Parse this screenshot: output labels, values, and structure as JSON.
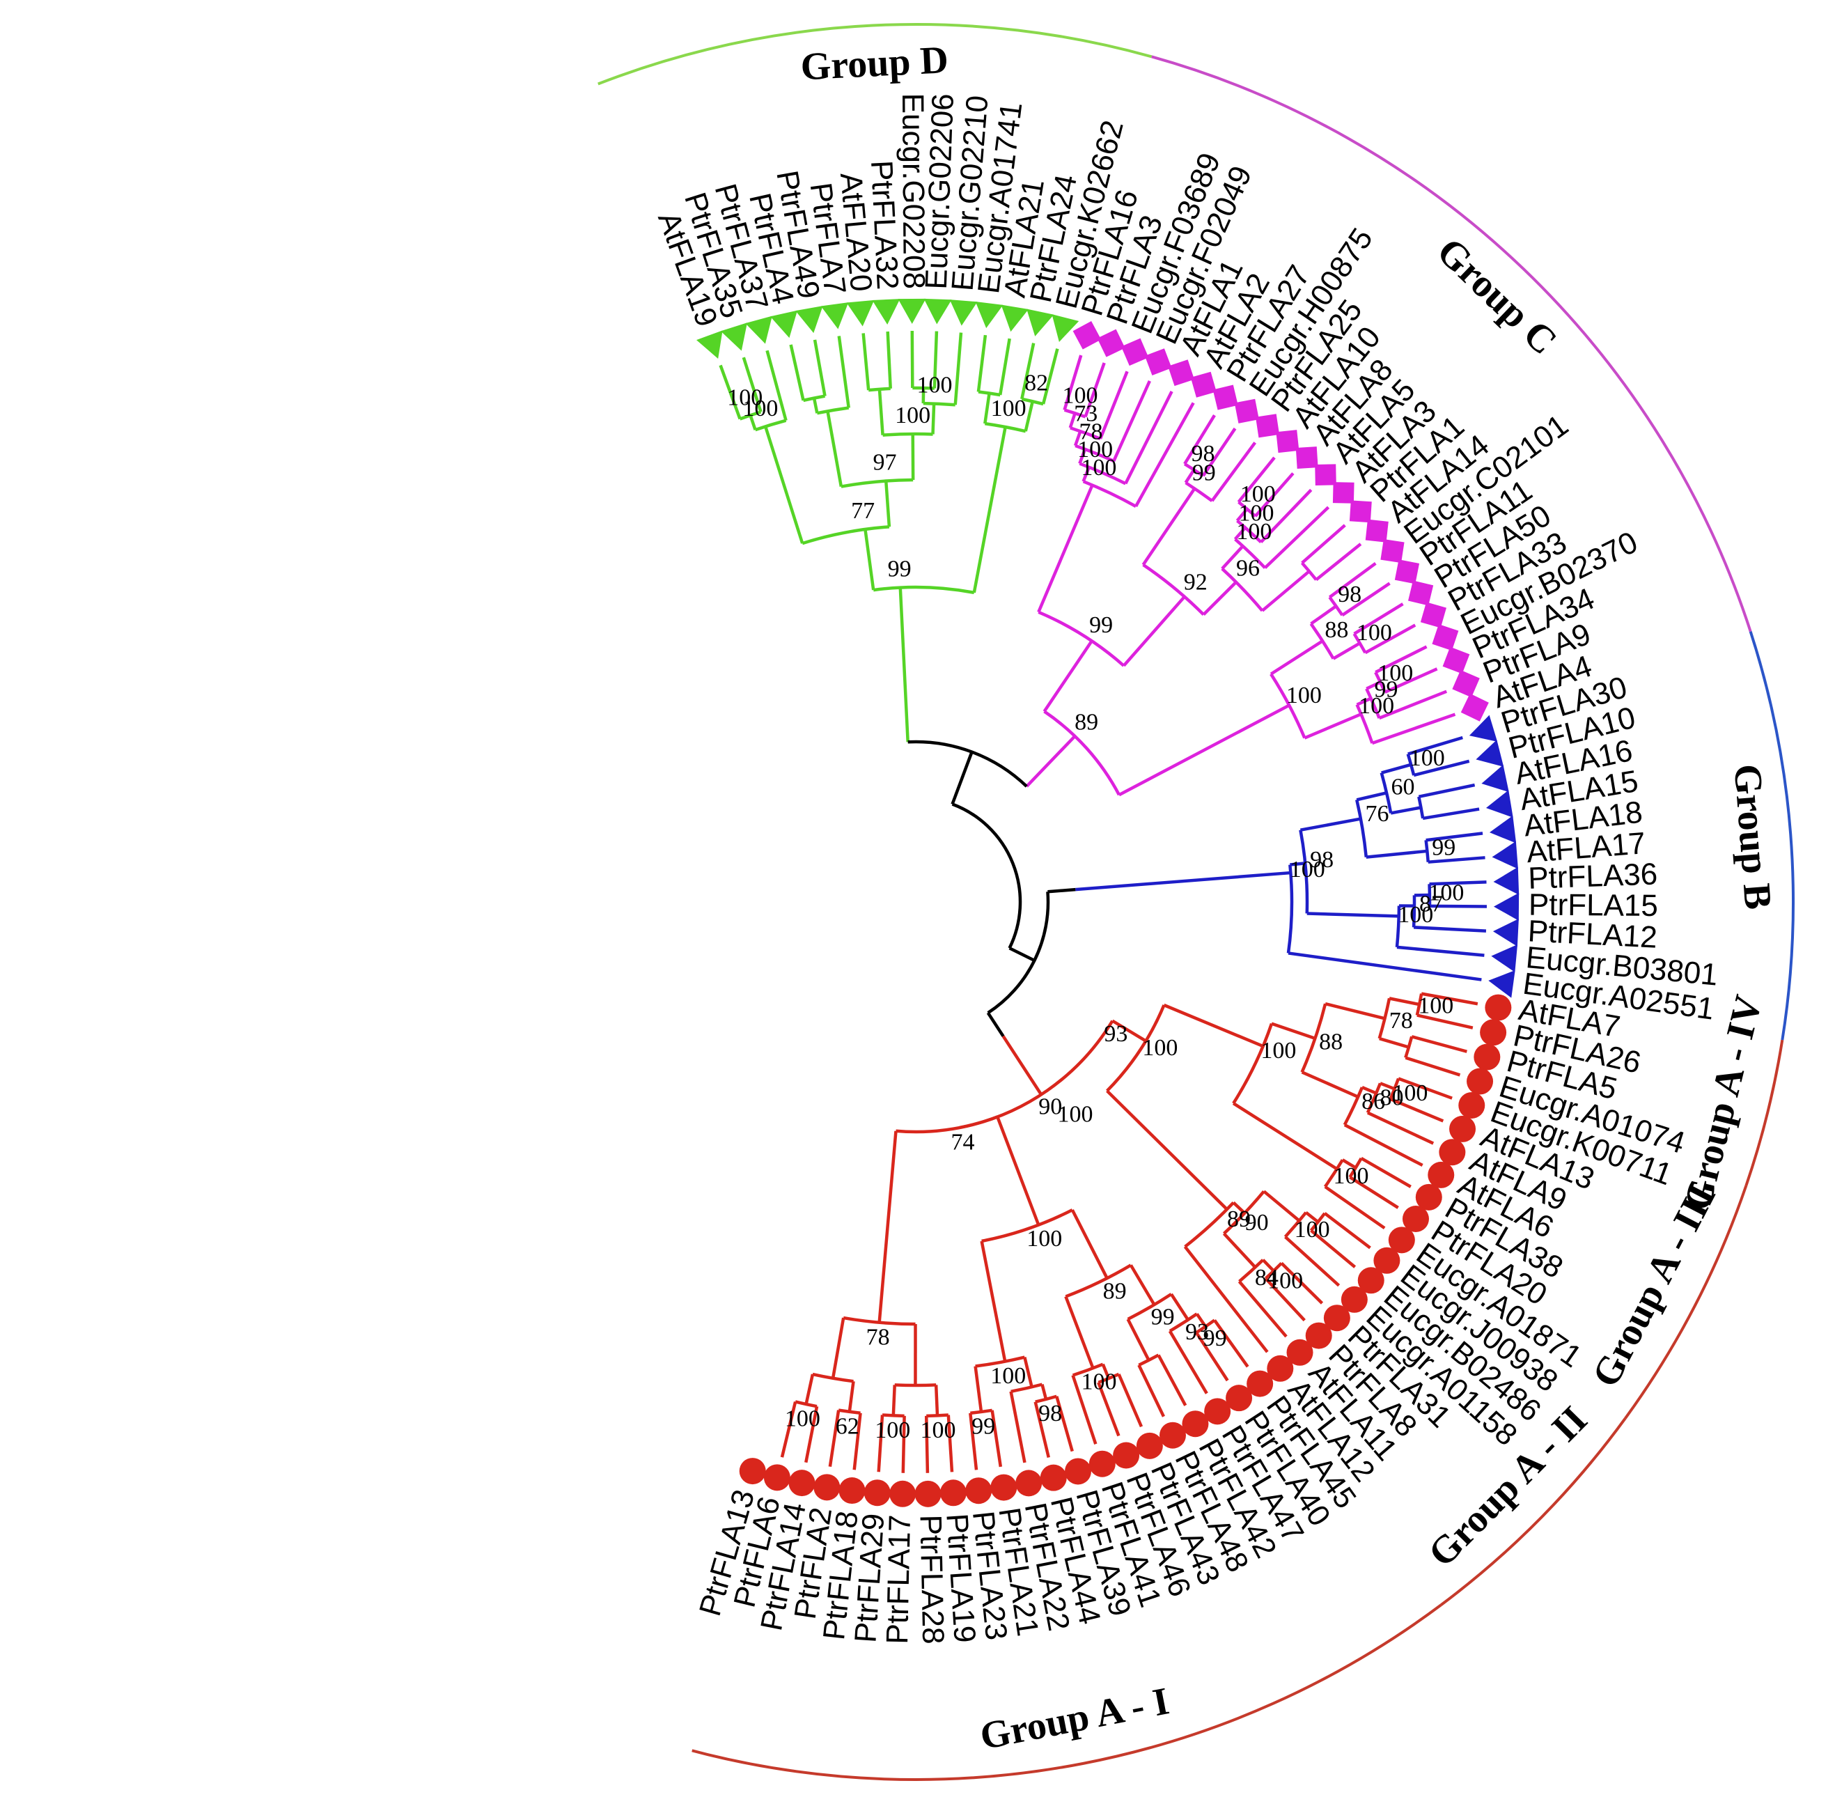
{
  "colors": {
    "groupA": "#d9261c",
    "groupB": "#1e1ec8",
    "groupC": "#dd22dd",
    "groupD": "#55d426",
    "groupAArc": "#c53a2b",
    "groupBArc": "#2b55c8",
    "groupCArc": "#c84cc8",
    "groupDArc": "#8ad84c",
    "backbone": "#000000"
  },
  "leaves": [
    {
      "name": "AtFLA19",
      "group": "D",
      "marker": "triangle"
    },
    {
      "name": "PtrFLA35",
      "group": "D",
      "marker": "triangle"
    },
    {
      "name": "PtrFLA37",
      "group": "D",
      "marker": "triangle"
    },
    {
      "name": "PtrFLA4",
      "group": "D",
      "marker": "triangle"
    },
    {
      "name": "PtrFLA49",
      "group": "D",
      "marker": "triangle"
    },
    {
      "name": "PtrFLA7",
      "group": "D",
      "marker": "triangle"
    },
    {
      "name": "AtFLA20",
      "group": "D",
      "marker": "triangle"
    },
    {
      "name": "PtrFLA32",
      "group": "D",
      "marker": "triangle"
    },
    {
      "name": "Eucgr.G02208",
      "group": "D",
      "marker": "triangle"
    },
    {
      "name": "Eucgr.G02206",
      "group": "D",
      "marker": "triangle"
    },
    {
      "name": "Eucgr.G02210",
      "group": "D",
      "marker": "triangle"
    },
    {
      "name": "Eucgr.A01741",
      "group": "D",
      "marker": "triangle"
    },
    {
      "name": "AtFLA21",
      "group": "D",
      "marker": "triangle"
    },
    {
      "name": "PtrFLA24",
      "group": "D",
      "marker": "triangle"
    },
    {
      "name": "Eucgr.K02662",
      "group": "D",
      "marker": "triangle"
    },
    {
      "name": "PtrFLA16",
      "group": "C",
      "marker": "diamond"
    },
    {
      "name": "PtrFLA3",
      "group": "C",
      "marker": "diamond"
    },
    {
      "name": "Eucgr.F03689",
      "group": "C",
      "marker": "diamond"
    },
    {
      "name": "Eucgr.F02049",
      "group": "C",
      "marker": "diamond"
    },
    {
      "name": "AtFLA1",
      "group": "C",
      "marker": "diamond"
    },
    {
      "name": "AtFLA2",
      "group": "C",
      "marker": "diamond"
    },
    {
      "name": "PtrFLA27",
      "group": "C",
      "marker": "diamond"
    },
    {
      "name": "Eucgr.H00875",
      "group": "C",
      "marker": "diamond"
    },
    {
      "name": "PtrFLA25",
      "group": "C",
      "marker": "diamond"
    },
    {
      "name": "AtFLA10",
      "group": "C",
      "marker": "diamond"
    },
    {
      "name": "AtFLA8",
      "group": "C",
      "marker": "diamond"
    },
    {
      "name": "AtFLA5",
      "group": "C",
      "marker": "diamond"
    },
    {
      "name": "AtFLA3",
      "group": "C",
      "marker": "diamond"
    },
    {
      "name": "PtrFLA1",
      "group": "C",
      "marker": "diamond"
    },
    {
      "name": "AtFLA14",
      "group": "C",
      "marker": "diamond"
    },
    {
      "name": "Eucgr.C02101",
      "group": "C",
      "marker": "diamond"
    },
    {
      "name": "PtrFLA11",
      "group": "C",
      "marker": "diamond"
    },
    {
      "name": "PtrFLA50",
      "group": "C",
      "marker": "diamond"
    },
    {
      "name": "PtrFLA33",
      "group": "C",
      "marker": "diamond"
    },
    {
      "name": "Eucgr.B02370",
      "group": "C",
      "marker": "diamond"
    },
    {
      "name": "PtrFLA34",
      "group": "C",
      "marker": "diamond"
    },
    {
      "name": "PtrFLA9",
      "group": "C",
      "marker": "diamond"
    },
    {
      "name": "AtFLA4",
      "group": "C",
      "marker": "diamond"
    },
    {
      "name": "PtrFLA30",
      "group": "B",
      "marker": "triangle"
    },
    {
      "name": "PtrFLA10",
      "group": "B",
      "marker": "triangle"
    },
    {
      "name": "AtFLA16",
      "group": "B",
      "marker": "triangle"
    },
    {
      "name": "AtFLA15",
      "group": "B",
      "marker": "triangle"
    },
    {
      "name": "AtFLA18",
      "group": "B",
      "marker": "triangle"
    },
    {
      "name": "AtFLA17",
      "group": "B",
      "marker": "triangle"
    },
    {
      "name": "PtrFLA36",
      "group": "B",
      "marker": "triangle"
    },
    {
      "name": "PtrFLA15",
      "group": "B",
      "marker": "triangle"
    },
    {
      "name": "PtrFLA12",
      "group": "B",
      "marker": "triangle"
    },
    {
      "name": "Eucgr.B03801",
      "group": "B",
      "marker": "triangle"
    },
    {
      "name": "Eucgr.A02551",
      "group": "B",
      "marker": "triangle"
    },
    {
      "name": "AtFLA7",
      "group": "A",
      "marker": "circle"
    },
    {
      "name": "PtrFLA26",
      "group": "A",
      "marker": "circle"
    },
    {
      "name": "PtrFLA5",
      "group": "A",
      "marker": "circle"
    },
    {
      "name": "Eucgr.A01074",
      "group": "A",
      "marker": "circle"
    },
    {
      "name": "Eucgr.K00711",
      "group": "A",
      "marker": "circle"
    },
    {
      "name": "AtFLA13",
      "group": "A",
      "marker": "circle"
    },
    {
      "name": "AtFLA9",
      "group": "A",
      "marker": "circle"
    },
    {
      "name": "AtFLA6",
      "group": "A",
      "marker": "circle"
    },
    {
      "name": "PtrFLA38",
      "group": "A",
      "marker": "circle"
    },
    {
      "name": "PtrFLA20",
      "group": "A",
      "marker": "circle"
    },
    {
      "name": "Eucgr.A01871",
      "group": "A",
      "marker": "circle"
    },
    {
      "name": "Eucgr.J00938",
      "group": "A",
      "marker": "circle"
    },
    {
      "name": "Eucgr.B02486",
      "group": "A",
      "marker": "circle"
    },
    {
      "name": "Eucgr.A01158",
      "group": "A",
      "marker": "circle"
    },
    {
      "name": "PtrFLA31",
      "group": "A",
      "marker": "circle"
    },
    {
      "name": "PtrFLA8",
      "group": "A",
      "marker": "circle"
    },
    {
      "name": "AtFLA11",
      "group": "A",
      "marker": "circle"
    },
    {
      "name": "AtFLA12",
      "group": "A",
      "marker": "circle"
    },
    {
      "name": "PtrFLA45",
      "group": "A",
      "marker": "circle"
    },
    {
      "name": "PtrFLA40",
      "group": "A",
      "marker": "circle"
    },
    {
      "name": "PtrFLA47",
      "group": "A",
      "marker": "circle"
    },
    {
      "name": "PtrFLA42",
      "group": "A",
      "marker": "circle"
    },
    {
      "name": "PtrFLA48",
      "group": "A",
      "marker": "circle"
    },
    {
      "name": "PtrFLA43",
      "group": "A",
      "marker": "circle"
    },
    {
      "name": "PtrFLA46",
      "group": "A",
      "marker": "circle"
    },
    {
      "name": "PtrFLA41",
      "group": "A",
      "marker": "circle"
    },
    {
      "name": "PtrFLA39",
      "group": "A",
      "marker": "circle"
    },
    {
      "name": "PtrFLA44",
      "group": "A",
      "marker": "circle"
    },
    {
      "name": "PtrFLA22",
      "group": "A",
      "marker": "circle"
    },
    {
      "name": "PtrFLA21",
      "group": "A",
      "marker": "circle"
    },
    {
      "name": "PtrFLA23",
      "group": "A",
      "marker": "circle"
    },
    {
      "name": "PtrFLA19",
      "group": "A",
      "marker": "circle"
    },
    {
      "name": "PtrFLA28",
      "group": "A",
      "marker": "circle"
    },
    {
      "name": "PtrFLA17",
      "group": "A",
      "marker": "circle"
    },
    {
      "name": "PtrFLA29",
      "group": "A",
      "marker": "circle"
    },
    {
      "name": "PtrFLA18",
      "group": "A",
      "marker": "circle"
    },
    {
      "name": "PtrFLA2",
      "group": "A",
      "marker": "circle"
    },
    {
      "name": "PtrFLA14",
      "group": "A",
      "marker": "circle"
    },
    {
      "name": "PtrFLA6",
      "group": "A",
      "marker": "circle"
    },
    {
      "name": "PtrFLA13",
      "group": "A",
      "marker": "circle"
    }
  ],
  "clades": [
    {
      "group": "D",
      "from": 0,
      "to": 1,
      "boot": "100"
    },
    {
      "group": "D",
      "from": 0,
      "to": 2,
      "boot": "100"
    },
    {
      "group": "D",
      "from": 3,
      "to": 4,
      "boot": ""
    },
    {
      "group": "D",
      "from": 3,
      "to": 5,
      "boot": ""
    },
    {
      "group": "D",
      "from": 6,
      "to": 7,
      "boot": ""
    },
    {
      "group": "D",
      "from": 8,
      "to": 9,
      "boot": ""
    },
    {
      "group": "D",
      "from": 8,
      "to": 10,
      "boot": "100"
    },
    {
      "group": "D",
      "from": 6,
      "to": 10,
      "boot": "100"
    },
    {
      "group": "D",
      "from": 3,
      "to": 10,
      "boot": "97"
    },
    {
      "group": "D",
      "from": 0,
      "to": 10,
      "boot": "77"
    },
    {
      "group": "D",
      "from": 11,
      "to": 12,
      "boot": ""
    },
    {
      "group": "D",
      "from": 13,
      "to": 14,
      "boot": "82"
    },
    {
      "group": "D",
      "from": 11,
      "to": 14,
      "boot": "100"
    },
    {
      "group": "D",
      "from": 0,
      "to": 14,
      "boot": "99"
    },
    {
      "group": "C",
      "from": 15,
      "to": 16,
      "boot": "100"
    },
    {
      "group": "C",
      "from": 15,
      "to": 17,
      "boot": "73"
    },
    {
      "group": "C",
      "from": 15,
      "to": 18,
      "boot": "78"
    },
    {
      "group": "C",
      "from": 15,
      "to": 19,
      "boot": "100"
    },
    {
      "group": "C",
      "from": 15,
      "to": 20,
      "boot": "100"
    },
    {
      "group": "C",
      "from": 21,
      "to": 22,
      "boot": "98"
    },
    {
      "group": "C",
      "from": 21,
      "to": 23,
      "boot": "99"
    },
    {
      "group": "C",
      "from": 24,
      "to": 25,
      "boot": "100"
    },
    {
      "group": "C",
      "from": 24,
      "to": 26,
      "boot": "100"
    },
    {
      "group": "C",
      "from": 24,
      "to": 27,
      "boot": "100"
    },
    {
      "group": "C",
      "from": 28,
      "to": 29,
      "boot": ""
    },
    {
      "group": "C",
      "from": 24,
      "to": 29,
      "boot": "96"
    },
    {
      "group": "C",
      "from": 21,
      "to": 29,
      "boot": "92"
    },
    {
      "group": "C",
      "from": 15,
      "to": 29,
      "boot": "99"
    },
    {
      "group": "C",
      "from": 30,
      "to": 31,
      "boot": "98"
    },
    {
      "group": "C",
      "from": 32,
      "to": 33,
      "boot": "100"
    },
    {
      "group": "C",
      "from": 30,
      "to": 33,
      "boot": "88"
    },
    {
      "group": "C",
      "from": 34,
      "to": 35,
      "boot": "100"
    },
    {
      "group": "C",
      "from": 34,
      "to": 36,
      "boot": "99"
    },
    {
      "group": "C",
      "from": 34,
      "to": 37,
      "boot": "100"
    },
    {
      "group": "C",
      "from": 30,
      "to": 37,
      "boot": "100"
    },
    {
      "group": "C",
      "from": 15,
      "to": 37,
      "boot": "89"
    },
    {
      "group": "B",
      "from": 38,
      "to": 39,
      "boot": "100"
    },
    {
      "group": "B",
      "from": 40,
      "to": 41,
      "boot": ""
    },
    {
      "group": "B",
      "from": 38,
      "to": 41,
      "boot": "60"
    },
    {
      "group": "B",
      "from": 42,
      "to": 43,
      "boot": "99"
    },
    {
      "group": "B",
      "from": 38,
      "to": 43,
      "boot": "76"
    },
    {
      "group": "B",
      "from": 44,
      "to": 45,
      "boot": "100"
    },
    {
      "group": "B",
      "from": 44,
      "to": 46,
      "boot": "87"
    },
    {
      "group": "B",
      "from": 44,
      "to": 47,
      "boot": "100"
    },
    {
      "group": "B",
      "from": 38,
      "to": 47,
      "boot": "98"
    },
    {
      "group": "B",
      "from": 38,
      "to": 48,
      "boot": "100"
    },
    {
      "group": "A",
      "from": 49,
      "to": 50,
      "boot": "100"
    },
    {
      "group": "A",
      "from": 51,
      "to": 52,
      "boot": ""
    },
    {
      "group": "A",
      "from": 49,
      "to": 52,
      "boot": "78"
    },
    {
      "group": "A",
      "from": 53,
      "to": 54,
      "boot": "100"
    },
    {
      "group": "A",
      "from": 53,
      "to": 55,
      "boot": "80"
    },
    {
      "group": "A",
      "from": 53,
      "to": 56,
      "boot": "86"
    },
    {
      "group": "A",
      "from": 49,
      "to": 56,
      "boot": "88"
    },
    {
      "group": "A",
      "from": 57,
      "to": 58,
      "boot": ""
    },
    {
      "group": "A",
      "from": 57,
      "to": 59,
      "boot": "100"
    },
    {
      "group": "A",
      "from": 49,
      "to": 59,
      "boot": "100"
    },
    {
      "group": "A",
      "from": 60,
      "to": 61,
      "boot": ""
    },
    {
      "group": "A",
      "from": 60,
      "to": 62,
      "boot": "100"
    },
    {
      "group": "A",
      "from": 63,
      "to": 64,
      "boot": "100"
    },
    {
      "group": "A",
      "from": 63,
      "to": 65,
      "boot": "84"
    },
    {
      "group": "A",
      "from": 60,
      "to": 65,
      "boot": "90"
    },
    {
      "group": "A",
      "from": 60,
      "to": 66,
      "boot": "89"
    },
    {
      "group": "A",
      "from": 49,
      "to": 66,
      "boot": "100"
    },
    {
      "group": "A",
      "from": 67,
      "to": 68,
      "boot": "99"
    },
    {
      "group": "A",
      "from": 67,
      "to": 69,
      "boot": "93"
    },
    {
      "group": "A",
      "from": 70,
      "to": 71,
      "boot": ""
    },
    {
      "group": "A",
      "from": 67,
      "to": 71,
      "boot": "99"
    },
    {
      "group": "A",
      "from": 72,
      "to": 73,
      "boot": ""
    },
    {
      "group": "A",
      "from": 72,
      "to": 74,
      "boot": "100"
    },
    {
      "group": "A",
      "from": 67,
      "to": 74,
      "boot": "89"
    },
    {
      "group": "A",
      "from": 75,
      "to": 76,
      "boot": "98"
    },
    {
      "group": "A",
      "from": 75,
      "to": 77,
      "boot": ""
    },
    {
      "group": "A",
      "from": 78,
      "to": 79,
      "boot": "99"
    },
    {
      "group": "A",
      "from": 75,
      "to": 79,
      "boot": "100"
    },
    {
      "group": "A",
      "from": 67,
      "to": 79,
      "boot": "100"
    },
    {
      "group": "A",
      "from": 80,
      "to": 81,
      "boot": "100"
    },
    {
      "group": "A",
      "from": 82,
      "to": 83,
      "boot": "100"
    },
    {
      "group": "A",
      "from": 80,
      "to": 83,
      "boot": ""
    },
    {
      "group": "A",
      "from": 84,
      "to": 85,
      "boot": "62"
    },
    {
      "group": "A",
      "from": 86,
      "to": 87,
      "boot": "100"
    },
    {
      "group": "A",
      "from": 84,
      "to": 87,
      "boot": ""
    },
    {
      "group": "A",
      "from": 80,
      "to": 87,
      "boot": "78"
    },
    {
      "group": "A",
      "from": 67,
      "to": 87,
      "boot": "74"
    },
    {
      "group": "A",
      "from": 49,
      "to": 87,
      "boot": "90"
    }
  ],
  "backbone_boot": [
    {
      "label": "93"
    },
    {
      "label": "100"
    }
  ],
  "groups": [
    {
      "id": "A1",
      "label": "Group A - I",
      "color": "#c53a2b",
      "from": 67,
      "to": 87
    },
    {
      "id": "A2",
      "label": "Group A - II",
      "color": "#c53a2b",
      "from": 60,
      "to": 66
    },
    {
      "id": "A3",
      "label": "Group A - III",
      "color": "#c53a2b",
      "from": 53,
      "to": 59
    },
    {
      "id": "A4",
      "label": "Group A - IV",
      "color": "#c53a2b",
      "from": 49,
      "to": 52
    },
    {
      "id": "B",
      "label": "Group B",
      "color": "#2b55c8",
      "from": 38,
      "to": 48
    },
    {
      "id": "C",
      "label": "Group C",
      "color": "#c84cc8",
      "from": 15,
      "to": 37
    },
    {
      "id": "D",
      "label": "Group D",
      "color": "#8ad84c",
      "from": 0,
      "to": 14
    }
  ]
}
